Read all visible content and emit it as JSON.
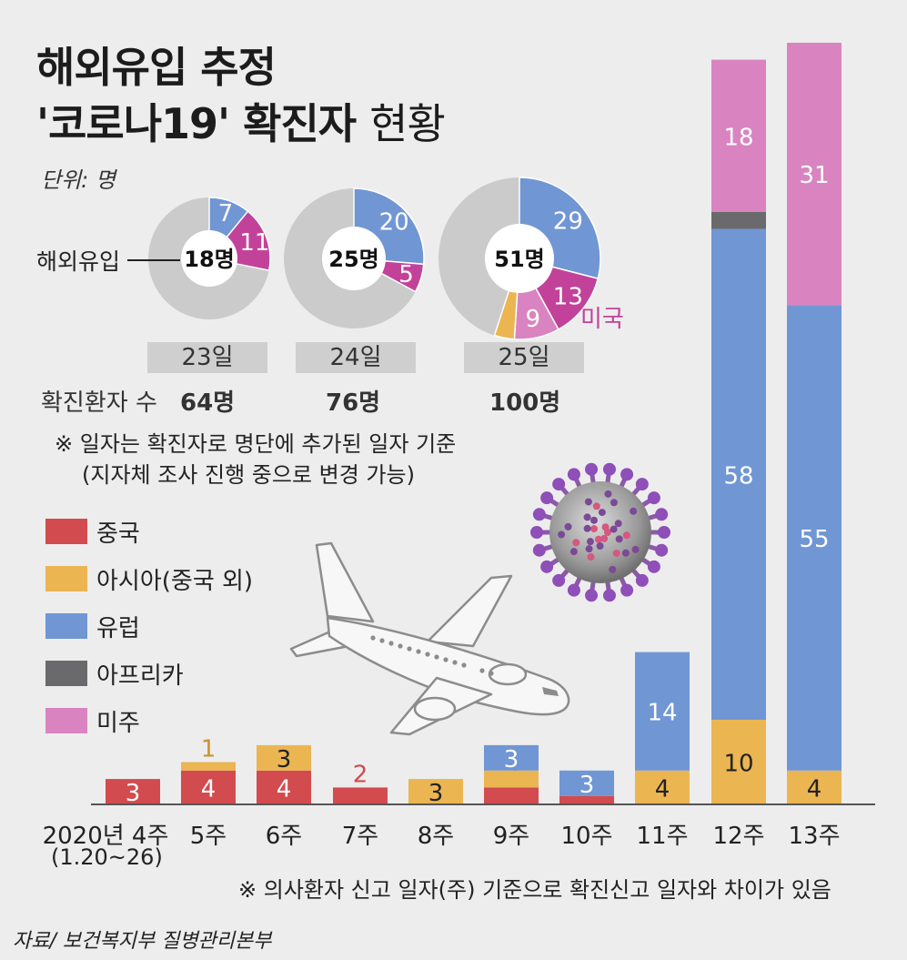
{
  "header": {
    "title_line1": "해외유입 추정",
    "title_line2_bold": "'코로나19' 확진자",
    "title_line2_light": "현황",
    "unit": "단위: 명"
  },
  "donuts": [
    {
      "day": "23일",
      "center": "18명",
      "cases": "64명"
    },
    {
      "day": "24일",
      "center": "25명",
      "cases": "76명"
    },
    {
      "day": "25일",
      "center": "51명",
      "cases": "100명"
    }
  ],
  "donut_label_overseas": "해외유입",
  "donut_label_usa": "미국",
  "confirmed_label": "확진환자 수",
  "note1_line1": "※ 일자는 확진자로 명단에 추가된 일자 기준",
  "note1_line2": "(지자체 조사 진행 중으로 변경 가능)",
  "legend": [
    {
      "label": "중국",
      "color": "#d24b4f"
    },
    {
      "label": "아시아(중국 외)",
      "color": "#ebb552"
    },
    {
      "label": "유럽",
      "color": "#7096d4"
    },
    {
      "label": "아프리카",
      "color": "#6a6a6c"
    },
    {
      "label": "미주",
      "color": "#d984c0"
    }
  ],
  "week_first_label_line1": "2020년 4주",
  "week_first_label_line2": "(1.20~26)",
  "note2": "※ 의사환자 신고 일자(주) 기준으로 확진신고 일자와 차이가 있음",
  "source": "자료/ 보건복지부 질병관리본부",
  "chart_data": [
    {
      "type": "bar",
      "stacked": true,
      "categories": [
        "2020년 4주",
        "5주",
        "6주",
        "7주",
        "8주",
        "9주",
        "10주",
        "11주",
        "12주",
        "13주"
      ],
      "series": [
        {
          "name": "중국",
          "color": "#d24b4f",
          "values": [
            3,
            4,
            4,
            2,
            0,
            2,
            1,
            0,
            0,
            0
          ]
        },
        {
          "name": "아시아(중국 외)",
          "color": "#ebb552",
          "values": [
            0,
            1,
            3,
            0,
            3,
            2,
            0,
            4,
            10,
            4
          ]
        },
        {
          "name": "유럽",
          "color": "#7096d4",
          "values": [
            0,
            0,
            0,
            0,
            0,
            3,
            3,
            14,
            58,
            55
          ]
        },
        {
          "name": "아프리카",
          "color": "#6a6a6c",
          "values": [
            0,
            0,
            0,
            0,
            0,
            0,
            0,
            0,
            2,
            0
          ]
        },
        {
          "name": "미주",
          "color": "#d984c0",
          "values": [
            0,
            0,
            0,
            0,
            0,
            0,
            0,
            0,
            18,
            31
          ]
        }
      ],
      "ylim": [
        0,
        92
      ]
    },
    {
      "type": "pie",
      "label": "23일",
      "total": 18,
      "slices": [
        {
          "name": "유럽",
          "value": 7,
          "color": "#7096d4"
        },
        {
          "name": "미국",
          "value": 11,
          "color": "#c2429a"
        }
      ]
    },
    {
      "type": "pie",
      "label": "24일",
      "total": 25,
      "slices": [
        {
          "name": "유럽",
          "value": 20,
          "color": "#7096d4"
        },
        {
          "name": "미국",
          "value": 5,
          "color": "#c2429a"
        }
      ]
    },
    {
      "type": "pie",
      "label": "25일",
      "total": 51,
      "slices": [
        {
          "name": "유럽",
          "value": 29,
          "color": "#7096d4"
        },
        {
          "name": "미국",
          "value": 13,
          "color": "#c2429a"
        },
        {
          "name": "미주",
          "value": 9,
          "color": "#d984c0"
        },
        {
          "name": "아시아",
          "value": 0,
          "color": "#ebb552"
        }
      ]
    }
  ]
}
